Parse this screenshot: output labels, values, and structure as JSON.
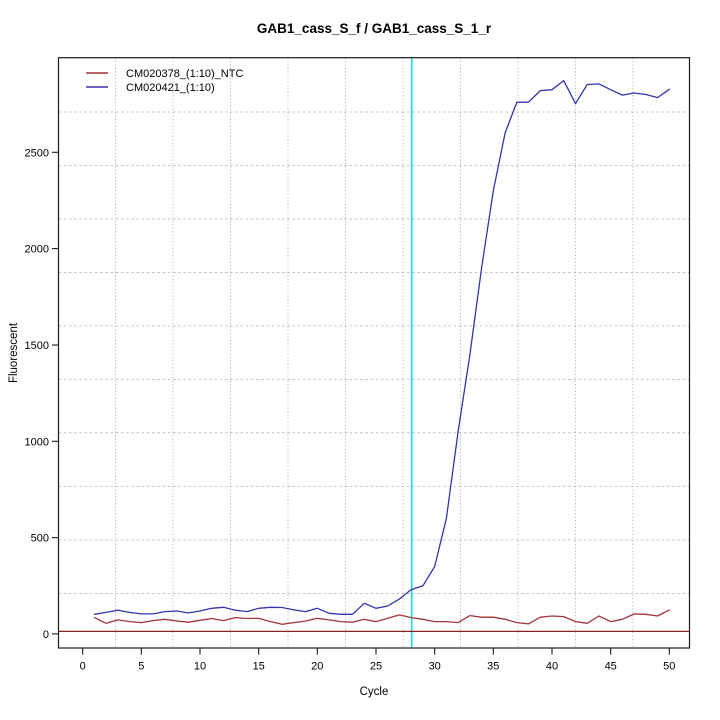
{
  "title": "GAB1_cass_S_f / GAB1_cass_S_1_r",
  "chart_data": {
    "type": "line",
    "title": "GAB1_cass_S_f / GAB1_cass_S_1_r",
    "xlabel": "Cycle",
    "ylabel": "Fluorescent",
    "x_range": [
      -2.06,
      51.72
    ],
    "y_range": [
      -73,
      2991
    ],
    "x_ticks": [
      0,
      5,
      10,
      15,
      20,
      25,
      30,
      35,
      40,
      45,
      50
    ],
    "y_ticks": [
      0,
      500,
      1000,
      1500,
      2000,
      2500
    ],
    "grid": {
      "vertical_x": [
        2.8,
        7.7,
        12.6,
        17.5,
        22.4,
        27.3,
        32.2,
        37.1,
        42.0,
        46.9
      ],
      "horizontal_y": [
        210,
        488,
        766,
        1044,
        1321,
        1599,
        1876,
        2154,
        2431,
        2709
      ]
    },
    "threshold_line": {
      "value": 13,
      "color": "#8B2121"
    },
    "ct_line": {
      "cycle": 28.05,
      "color": "#00E5E5"
    },
    "x": [
      1,
      2,
      3,
      4,
      5,
      6,
      7,
      8,
      9,
      10,
      11,
      12,
      13,
      14,
      15,
      16,
      17,
      18,
      19,
      20,
      21,
      22,
      23,
      24,
      25,
      26,
      27,
      28,
      29,
      30,
      31,
      32,
      33,
      34,
      35,
      36,
      37,
      38,
      39,
      40,
      41,
      42,
      43,
      44,
      45,
      46,
      47,
      48,
      49,
      50
    ],
    "series": [
      {
        "name": "CM020378_(1:10)_NTC",
        "color": "#A03636",
        "values": [
          85,
          55,
          73,
          64,
          59,
          69,
          76,
          67,
          61,
          71,
          80,
          69,
          85,
          80,
          81,
          64,
          50,
          59,
          67,
          81,
          73,
          64,
          61,
          76,
          64,
          81,
          99,
          85,
          76,
          64,
          64,
          59,
          95,
          87,
          87,
          76,
          59,
          52,
          87,
          93,
          90,
          64,
          55,
          93,
          64,
          76,
          104,
          102,
          93,
          125
        ]
      },
      {
        "name": "CM020421_(1:10)",
        "color": "#3434AC",
        "values": [
          102,
          112,
          123,
          112,
          104,
          104,
          116,
          119,
          109,
          119,
          133,
          138,
          123,
          116,
          133,
          138,
          137,
          125,
          116,
          133,
          107,
          102,
          102,
          159,
          133,
          145,
          182,
          230,
          250,
          350,
          600,
          1050,
          1450,
          1900,
          2300,
          2600,
          2760,
          2760,
          2820,
          2825,
          2872,
          2752,
          2852,
          2855,
          2825,
          2797,
          2808,
          2800,
          2784,
          2827
        ]
      }
    ],
    "legend_position": "top-left",
    "grid_on": true
  }
}
